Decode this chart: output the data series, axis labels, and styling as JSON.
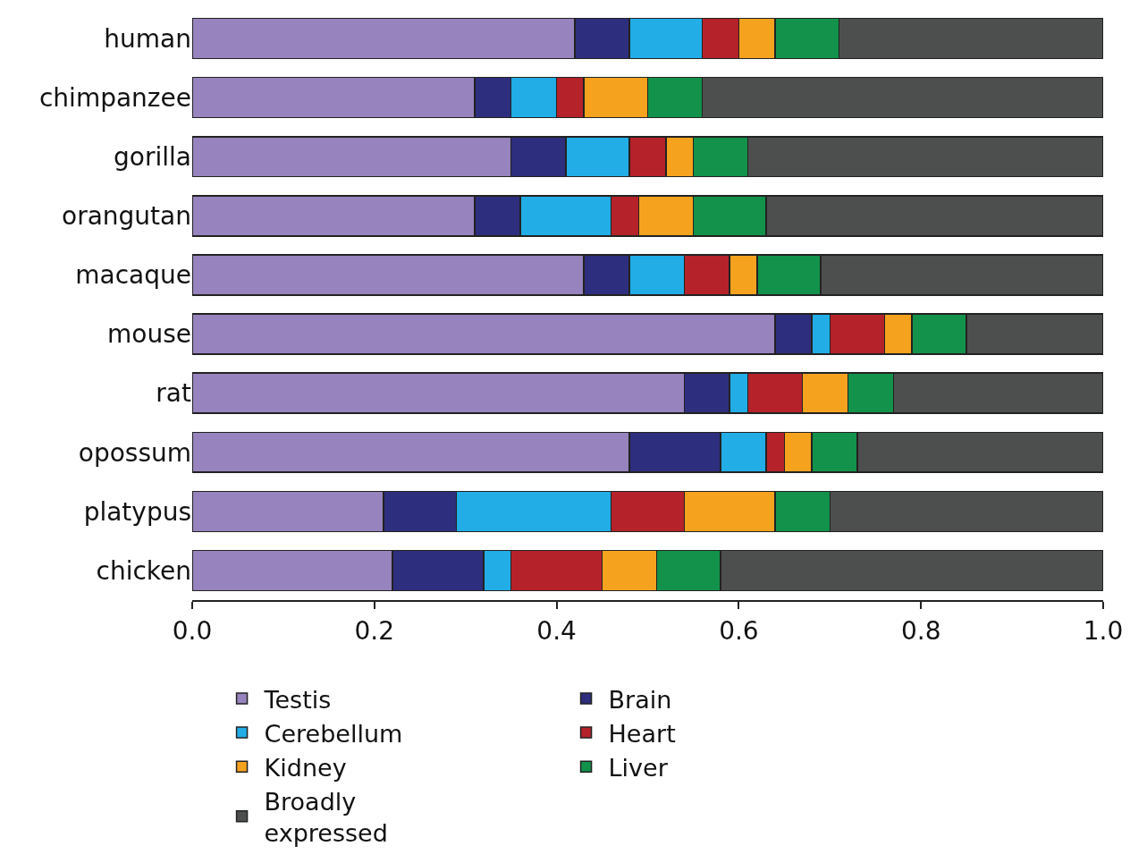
{
  "chart_data": {
    "type": "bar",
    "orientation": "horizontal",
    "stacked": true,
    "categories": [
      "human",
      "chimpanzee",
      "gorilla",
      "orangutan",
      "macaque",
      "mouse",
      "rat",
      "opossum",
      "platypus",
      "chicken"
    ],
    "series": [
      {
        "name": "Testis",
        "color": "#9783bd",
        "values": [
          0.42,
          0.31,
          0.35,
          0.31,
          0.43,
          0.64,
          0.54,
          0.48,
          0.21,
          0.22
        ]
      },
      {
        "name": "Brain",
        "color": "#2e2e7e",
        "values": [
          0.06,
          0.04,
          0.06,
          0.05,
          0.05,
          0.04,
          0.05,
          0.1,
          0.08,
          0.1
        ]
      },
      {
        "name": "Cerebellum",
        "color": "#22ade6",
        "values": [
          0.08,
          0.05,
          0.07,
          0.1,
          0.06,
          0.02,
          0.02,
          0.05,
          0.17,
          0.03
        ]
      },
      {
        "name": "Heart",
        "color": "#b5222a",
        "values": [
          0.04,
          0.03,
          0.04,
          0.03,
          0.05,
          0.06,
          0.06,
          0.02,
          0.08,
          0.1
        ]
      },
      {
        "name": "Kidney",
        "color": "#f5a21f",
        "values": [
          0.04,
          0.07,
          0.03,
          0.06,
          0.03,
          0.03,
          0.05,
          0.03,
          0.1,
          0.06
        ]
      },
      {
        "name": "Liver",
        "color": "#12924a",
        "values": [
          0.07,
          0.06,
          0.06,
          0.08,
          0.07,
          0.06,
          0.05,
          0.05,
          0.06,
          0.07
        ]
      },
      {
        "name": "Broadly expressed",
        "color": "#4d4f4e",
        "values": [
          0.29,
          0.44,
          0.39,
          0.37,
          0.31,
          0.15,
          0.23,
          0.27,
          0.3,
          0.42
        ]
      }
    ],
    "xlim": [
      0,
      1
    ],
    "xticks": [
      {
        "value": 0,
        "label": "0.0"
      },
      0.2,
      0.4,
      0.6,
      0.8,
      {
        "value": 1,
        "label": "1.0"
      }
    ],
    "grid": false,
    "legend": "bottom"
  }
}
